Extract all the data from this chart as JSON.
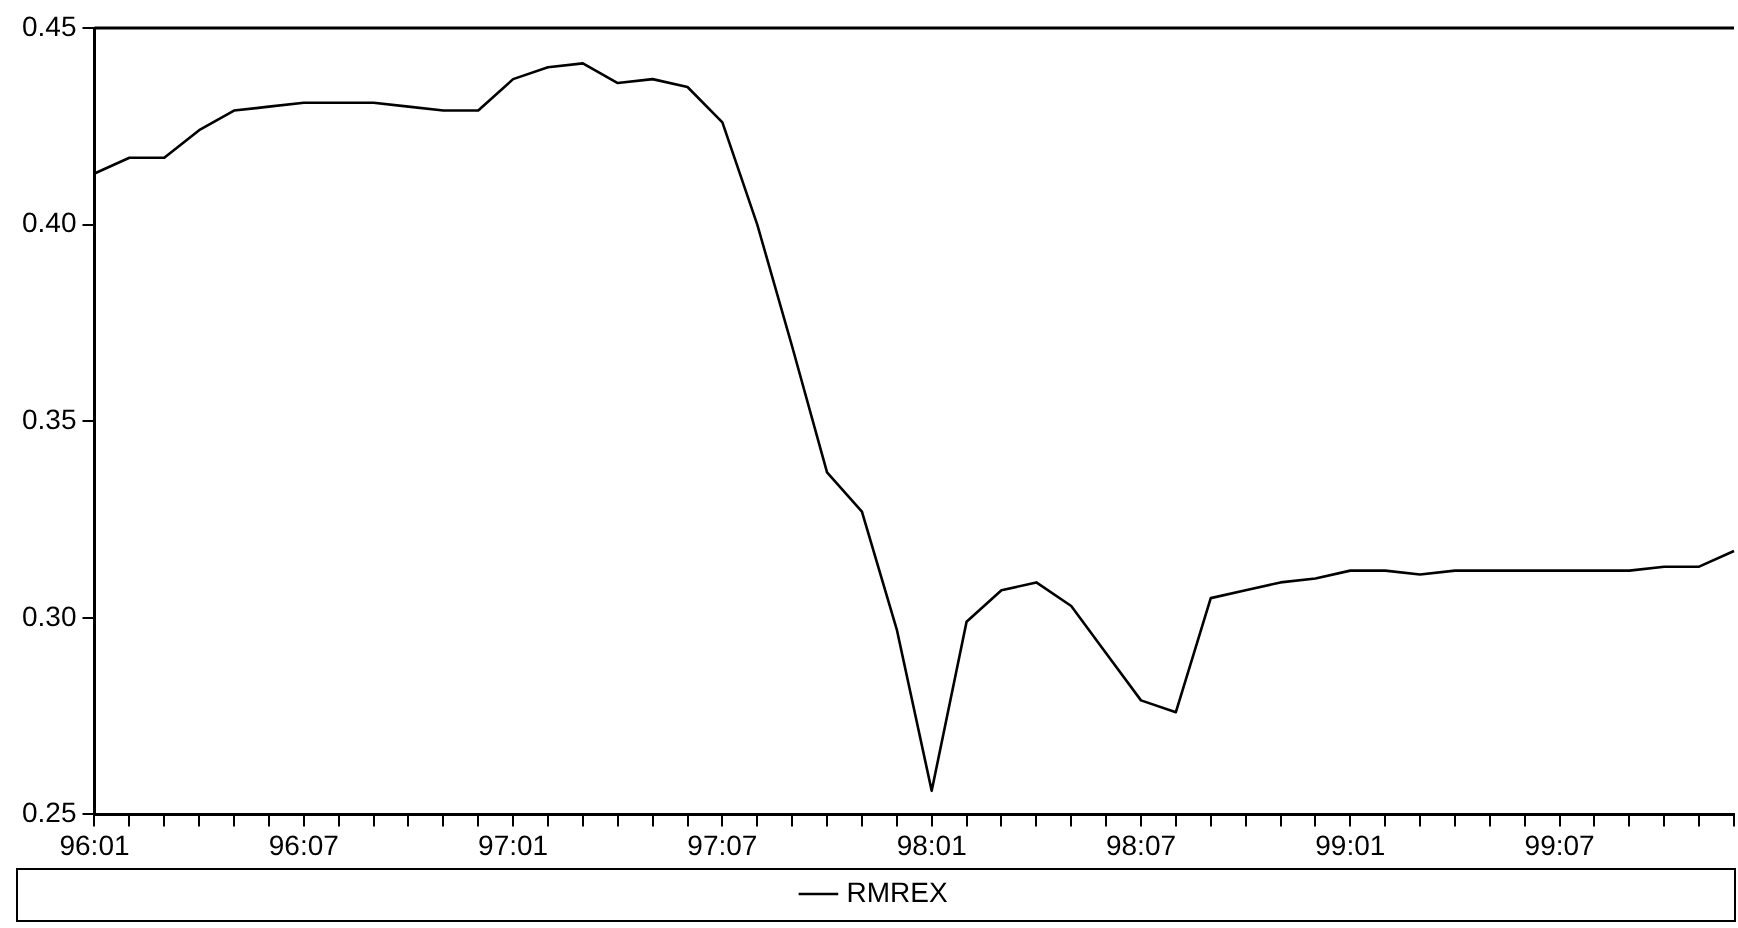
{
  "chart_data": {
    "type": "line",
    "categories": [
      "96:01",
      null,
      null,
      null,
      null,
      null,
      "96:07",
      null,
      null,
      null,
      null,
      null,
      "97:01",
      null,
      null,
      null,
      null,
      null,
      "97:07",
      null,
      null,
      null,
      null,
      null,
      "98:01",
      null,
      null,
      null,
      null,
      null,
      "98:07",
      null,
      null,
      null,
      null,
      null,
      "99:01",
      null,
      null,
      null,
      null,
      null,
      "99:07",
      null,
      null,
      null,
      null,
      null
    ],
    "series": [
      {
        "name": "RMREX",
        "color": "#000000",
        "values": [
          0.413,
          0.417,
          0.417,
          0.424,
          0.429,
          0.43,
          0.431,
          0.431,
          0.431,
          0.43,
          0.429,
          0.429,
          0.437,
          0.44,
          0.441,
          0.436,
          0.437,
          0.435,
          0.426,
          0.4,
          0.369,
          0.337,
          0.327,
          0.297,
          0.256,
          0.299,
          0.307,
          0.309,
          0.303,
          0.291,
          0.279,
          0.276,
          0.305,
          0.307,
          0.309,
          0.31,
          0.312,
          0.312,
          0.311,
          0.312,
          0.312,
          0.312,
          0.312,
          0.312,
          0.312,
          0.313,
          0.313,
          0.317
        ]
      }
    ],
    "ylim": [
      0.25,
      0.45
    ],
    "yticks": [
      {
        "value": 0.25,
        "label": "0.25"
      },
      {
        "value": 0.3,
        "label": "0.30"
      },
      {
        "value": 0.35,
        "label": "0.35"
      },
      {
        "value": 0.4,
        "label": "0.40"
      },
      {
        "value": 0.45,
        "label": "0.45"
      }
    ],
    "legend": "bottom"
  }
}
